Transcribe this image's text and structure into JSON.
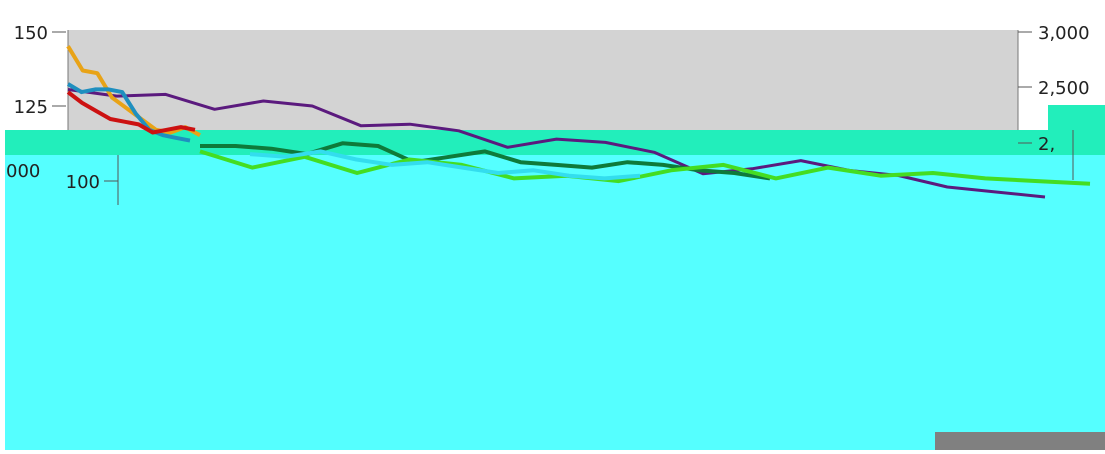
{
  "chart_data": {
    "type": "line",
    "left_axis": {
      "ticks": [
        150,
        125,
        100
      ],
      "ylim": [
        90,
        153
      ]
    },
    "right_axis": {
      "ticks": [
        "3,000",
        "2,500",
        "2,"
      ],
      "ylim": [
        1800,
        3100
      ]
    },
    "secondary_axis_partial_label": "000",
    "grid": false,
    "legend": "none",
    "series": [
      {
        "color": "#5b1a7e",
        "axis": "right",
        "values": [
          2680,
          2640,
          2650,
          2560,
          2610,
          2580,
          2460,
          2470,
          2430,
          2330,
          2380,
          2360,
          2300,
          2170,
          2200,
          2250,
          2190,
          2160,
          2090,
          2060,
          2030
        ]
      },
      {
        "color": "#e8a317",
        "axis": "left",
        "values": [
          147,
          138,
          137,
          128,
          124,
          120,
          116,
          115,
          117,
          114
        ]
      },
      {
        "color": "#1f8fbf",
        "axis": "left",
        "values": [
          133,
          130,
          131,
          131,
          130,
          122,
          116,
          114,
          113,
          112
        ]
      },
      {
        "color": "#cc1111",
        "axis": "left",
        "values": [
          130,
          126,
          123,
          120,
          119,
          118,
          115,
          116,
          117,
          116
        ]
      },
      {
        "color": "#0e7a3a",
        "axis": "left",
        "values": [
          110,
          110,
          109,
          107,
          111,
          110,
          104,
          106,
          108,
          104,
          103,
          102,
          104,
          103,
          101,
          100,
          98
        ]
      },
      {
        "color": "#44dd22",
        "axis": "left",
        "values": [
          108,
          102,
          106,
          100,
          105,
          103,
          98,
          99,
          97,
          101,
          103,
          98,
          102,
          99,
          100,
          98,
          97,
          96
        ]
      },
      {
        "color": "#33ddee",
        "axis": "left",
        "values": [
          107,
          106,
          108,
          105,
          103,
          104,
          102,
          100,
          101,
          99,
          98,
          99
        ]
      }
    ]
  }
}
